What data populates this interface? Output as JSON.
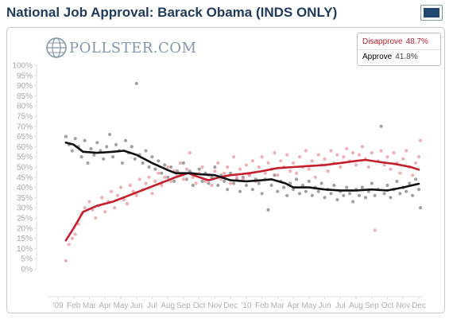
{
  "header": {
    "title": "National Job Approval: Barack Obama (INDS ONLY)"
  },
  "corner_button": {
    "icon": "window-icon"
  },
  "brand": {
    "name": "POLLSTER.COM",
    "icon": "pollster-globe-icon"
  },
  "legend": {
    "items": [
      {
        "label": "Disapprove",
        "value": "48.7%",
        "color": "#c51f2e"
      },
      {
        "label": "Approve",
        "value": "41.8%",
        "color": "#111111"
      }
    ]
  },
  "chart_data": {
    "type": "scatter",
    "title": "National Job Approval: Barack Obama (INDS ONLY)",
    "xlabel": "",
    "ylabel": "",
    "ylim": [
      0,
      100
    ],
    "yticks": [
      "0%",
      "5%",
      "10%",
      "15%",
      "20%",
      "25%",
      "30%",
      "35%",
      "40%",
      "45%",
      "50%",
      "55%",
      "60%",
      "65%",
      "70%",
      "75%",
      "80%",
      "85%",
      "90%",
      "95%",
      "100%"
    ],
    "xlim": [
      0,
      23
    ],
    "xticks": [
      {
        "x": 0,
        "label": "'09"
      },
      {
        "x": 1,
        "label": "Feb"
      },
      {
        "x": 2,
        "label": "Mar"
      },
      {
        "x": 3,
        "label": "Apr"
      },
      {
        "x": 4,
        "label": "May"
      },
      {
        "x": 5,
        "label": "Jun"
      },
      {
        "x": 6,
        "label": "Jul"
      },
      {
        "x": 7,
        "label": "Aug"
      },
      {
        "x": 8,
        "label": "Sep"
      },
      {
        "x": 9,
        "label": "Oct"
      },
      {
        "x": 10,
        "label": "Nov"
      },
      {
        "x": 11,
        "label": "Dec"
      },
      {
        "x": 12,
        "label": "'10"
      },
      {
        "x": 13,
        "label": "Feb"
      },
      {
        "x": 14,
        "label": "Mar"
      },
      {
        "x": 15,
        "label": "Apr"
      },
      {
        "x": 16,
        "label": "May"
      },
      {
        "x": 17,
        "label": "Jun"
      },
      {
        "x": 18,
        "label": "Jul"
      },
      {
        "x": 19,
        "label": "Aug"
      },
      {
        "x": 20,
        "label": "Sep"
      },
      {
        "x": 21,
        "label": "Oct"
      },
      {
        "x": 22,
        "label": "Nov"
      },
      {
        "x": 23,
        "label": "Dec"
      }
    ],
    "grid": false,
    "legend_position": "top-right",
    "series": [
      {
        "name": "Disapprove",
        "color": "#c51f2e",
        "dot_color": "#ee9aa2",
        "trend": [
          [
            0.5,
            14
          ],
          [
            1,
            20
          ],
          [
            1.6,
            28
          ],
          [
            2.5,
            31
          ],
          [
            3.5,
            33
          ],
          [
            4.5,
            36
          ],
          [
            5.5,
            39
          ],
          [
            6.5,
            42
          ],
          [
            7.5,
            45
          ],
          [
            8.3,
            47
          ],
          [
            9,
            45
          ],
          [
            9.6,
            43.5
          ],
          [
            10.3,
            45
          ],
          [
            11,
            46
          ],
          [
            11.6,
            46.5
          ],
          [
            12.2,
            47
          ],
          [
            13,
            48
          ],
          [
            14,
            49.5
          ],
          [
            15,
            50
          ],
          [
            16,
            50.5
          ],
          [
            17,
            51
          ],
          [
            18,
            52
          ],
          [
            19,
            53
          ],
          [
            19.6,
            53.5
          ],
          [
            20.5,
            52.5
          ],
          [
            21.5,
            51.5
          ],
          [
            22.5,
            50
          ],
          [
            23,
            48.7
          ]
        ],
        "points": [
          [
            0.5,
            4
          ],
          [
            0.7,
            12
          ],
          [
            0.9,
            15
          ],
          [
            1.1,
            17
          ],
          [
            1.3,
            22
          ],
          [
            1.5,
            27
          ],
          [
            1.7,
            30
          ],
          [
            2,
            33
          ],
          [
            2.2,
            29
          ],
          [
            2.4,
            25
          ],
          [
            2.6,
            31
          ],
          [
            2.8,
            35
          ],
          [
            3,
            28
          ],
          [
            3.2,
            33
          ],
          [
            3.4,
            38
          ],
          [
            3.6,
            30
          ],
          [
            3.8,
            36
          ],
          [
            4,
            40
          ],
          [
            4.2,
            34
          ],
          [
            4.4,
            32
          ],
          [
            4.6,
            41
          ],
          [
            4.8,
            38
          ],
          [
            5,
            36
          ],
          [
            5.2,
            44
          ],
          [
            5.4,
            39
          ],
          [
            5.6,
            42
          ],
          [
            5.8,
            45
          ],
          [
            6,
            37
          ],
          [
            6.2,
            43
          ],
          [
            6.4,
            47
          ],
          [
            6.6,
            41
          ],
          [
            6.8,
            45
          ],
          [
            7,
            50
          ],
          [
            7.2,
            43
          ],
          [
            7.4,
            48
          ],
          [
            7.6,
            46
          ],
          [
            7.8,
            52
          ],
          [
            8,
            44
          ],
          [
            8.2,
            49
          ],
          [
            8.4,
            57
          ],
          [
            8.6,
            45
          ],
          [
            8.8,
            42
          ],
          [
            9,
            47
          ],
          [
            9.2,
            50
          ],
          [
            9.4,
            43
          ],
          [
            9.6,
            46
          ],
          [
            9.8,
            41
          ],
          [
            10,
            48
          ],
          [
            10.2,
            52
          ],
          [
            10.4,
            44
          ],
          [
            10.6,
            47
          ],
          [
            10.8,
            50
          ],
          [
            11,
            42
          ],
          [
            11.2,
            55
          ],
          [
            11.4,
            45
          ],
          [
            11.6,
            49
          ],
          [
            11.8,
            44
          ],
          [
            12,
            51
          ],
          [
            12.2,
            46
          ],
          [
            12.4,
            53
          ],
          [
            12.6,
            43
          ],
          [
            12.8,
            50
          ],
          [
            13,
            55
          ],
          [
            13.2,
            47
          ],
          [
            13.4,
            52
          ],
          [
            13.6,
            49
          ],
          [
            13.8,
            57
          ],
          [
            14,
            46
          ],
          [
            14.2,
            53
          ],
          [
            14.4,
            50
          ],
          [
            14.6,
            56
          ],
          [
            14.8,
            48
          ],
          [
            15,
            52
          ],
          [
            15.2,
            47
          ],
          [
            15.4,
            55
          ],
          [
            15.6,
            50
          ],
          [
            15.8,
            58
          ],
          [
            16,
            49
          ],
          [
            16.2,
            53
          ],
          [
            16.4,
            45
          ],
          [
            16.6,
            56
          ],
          [
            16.8,
            51
          ],
          [
            17,
            54
          ],
          [
            17.2,
            48
          ],
          [
            17.4,
            58
          ],
          [
            17.6,
            52
          ],
          [
            17.8,
            56
          ],
          [
            18,
            50
          ],
          [
            18.2,
            55
          ],
          [
            18.4,
            59
          ],
          [
            18.6,
            53
          ],
          [
            18.8,
            57
          ],
          [
            19,
            51
          ],
          [
            19.2,
            56
          ],
          [
            19.4,
            60
          ],
          [
            19.6,
            54
          ],
          [
            19.8,
            50
          ],
          [
            20,
            57
          ],
          [
            20.2,
            19
          ],
          [
            20.4,
            53
          ],
          [
            20.6,
            58
          ],
          [
            20.8,
            51
          ],
          [
            21,
            55
          ],
          [
            21.2,
            49
          ],
          [
            21.4,
            57
          ],
          [
            21.6,
            52
          ],
          [
            21.8,
            47
          ],
          [
            22,
            54
          ],
          [
            22.2,
            58
          ],
          [
            22.4,
            50
          ],
          [
            22.6,
            46
          ],
          [
            22.8,
            52
          ],
          [
            23,
            55
          ],
          [
            23.1,
            63
          ]
        ]
      },
      {
        "name": "Approve",
        "color": "#111111",
        "dot_color": "#8a8a8a",
        "trend": [
          [
            0.5,
            62
          ],
          [
            1,
            61
          ],
          [
            1.6,
            57.5
          ],
          [
            2.5,
            57
          ],
          [
            3.5,
            57.5
          ],
          [
            4.2,
            58
          ],
          [
            5,
            56
          ],
          [
            5.5,
            54
          ],
          [
            6,
            52
          ],
          [
            7,
            48.5
          ],
          [
            7.5,
            47
          ],
          [
            8.5,
            47
          ],
          [
            9,
            46.5
          ],
          [
            10,
            46
          ],
          [
            11,
            43.5
          ],
          [
            12,
            43
          ],
          [
            13,
            43.5
          ],
          [
            13.6,
            44
          ],
          [
            14.5,
            42
          ],
          [
            15,
            40
          ],
          [
            16,
            40
          ],
          [
            17,
            39
          ],
          [
            18,
            38.5
          ],
          [
            19,
            38.5
          ],
          [
            20,
            39
          ],
          [
            21,
            38.5
          ],
          [
            22,
            40
          ],
          [
            23,
            41.8
          ]
        ],
        "points": [
          [
            0.5,
            65
          ],
          [
            0.7,
            61
          ],
          [
            0.9,
            58
          ],
          [
            1.1,
            64
          ],
          [
            1.3,
            60
          ],
          [
            1.5,
            55
          ],
          [
            1.7,
            63
          ],
          [
            1.9,
            52
          ],
          [
            2.1,
            59
          ],
          [
            2.3,
            56
          ],
          [
            2.5,
            62
          ],
          [
            2.7,
            58
          ],
          [
            2.9,
            54
          ],
          [
            3.1,
            60
          ],
          [
            3.3,
            66
          ],
          [
            3.5,
            55
          ],
          [
            3.7,
            61
          ],
          [
            3.9,
            58
          ],
          [
            4.1,
            52
          ],
          [
            4.3,
            63
          ],
          [
            4.5,
            57
          ],
          [
            4.7,
            60
          ],
          [
            4.9,
            54
          ],
          [
            5,
            91
          ],
          [
            5.2,
            56
          ],
          [
            5.4,
            52
          ],
          [
            5.6,
            58
          ],
          [
            5.8,
            50
          ],
          [
            6,
            55
          ],
          [
            6.2,
            49
          ],
          [
            6.4,
            53
          ],
          [
            6.6,
            47
          ],
          [
            6.8,
            51
          ],
          [
            7,
            45
          ],
          [
            7.2,
            50
          ],
          [
            7.4,
            43
          ],
          [
            7.6,
            48
          ],
          [
            7.8,
            46
          ],
          [
            8,
            52
          ],
          [
            8.2,
            44
          ],
          [
            8.4,
            48
          ],
          [
            8.6,
            41
          ],
          [
            8.8,
            46
          ],
          [
            9,
            49
          ],
          [
            9.2,
            43
          ],
          [
            9.4,
            47
          ],
          [
            9.6,
            42
          ],
          [
            9.8,
            45
          ],
          [
            10,
            50
          ],
          [
            10.2,
            41
          ],
          [
            10.4,
            46
          ],
          [
            10.6,
            43
          ],
          [
            10.8,
            39
          ],
          [
            11,
            47
          ],
          [
            11.2,
            42
          ],
          [
            11.4,
            44
          ],
          [
            11.6,
            38
          ],
          [
            11.8,
            45
          ],
          [
            12,
            41
          ],
          [
            12.2,
            46
          ],
          [
            12.4,
            39
          ],
          [
            12.6,
            44
          ],
          [
            12.8,
            42
          ],
          [
            13,
            37
          ],
          [
            13.2,
            44
          ],
          [
            13.4,
            29
          ],
          [
            13.6,
            41
          ],
          [
            13.8,
            46
          ],
          [
            14,
            38
          ],
          [
            14.2,
            43
          ],
          [
            14.4,
            40
          ],
          [
            14.6,
            36
          ],
          [
            14.8,
            42
          ],
          [
            15,
            39
          ],
          [
            15.2,
            44
          ],
          [
            15.4,
            37
          ],
          [
            15.6,
            41
          ],
          [
            15.8,
            38
          ],
          [
            16,
            43
          ],
          [
            16.2,
            36
          ],
          [
            16.4,
            40
          ],
          [
            16.6,
            38
          ],
          [
            16.8,
            42
          ],
          [
            17,
            35
          ],
          [
            17.2,
            39
          ],
          [
            17.4,
            37
          ],
          [
            17.6,
            41
          ],
          [
            17.8,
            34
          ],
          [
            18,
            38
          ],
          [
            18.2,
            36
          ],
          [
            18.4,
            40
          ],
          [
            18.6,
            37
          ],
          [
            18.8,
            33
          ],
          [
            19,
            39
          ],
          [
            19.2,
            36
          ],
          [
            19.4,
            40
          ],
          [
            19.6,
            35
          ],
          [
            19.8,
            38
          ],
          [
            20,
            42
          ],
          [
            20.2,
            36
          ],
          [
            20.4,
            39
          ],
          [
            20.6,
            70
          ],
          [
            20.8,
            37
          ],
          [
            21,
            41
          ],
          [
            21.2,
            35
          ],
          [
            21.4,
            39
          ],
          [
            21.6,
            43
          ],
          [
            21.8,
            37
          ],
          [
            22,
            40
          ],
          [
            22.2,
            38
          ],
          [
            22.4,
            42
          ],
          [
            22.6,
            36
          ],
          [
            22.8,
            44
          ],
          [
            23,
            39
          ],
          [
            23.1,
            30
          ]
        ]
      }
    ]
  }
}
